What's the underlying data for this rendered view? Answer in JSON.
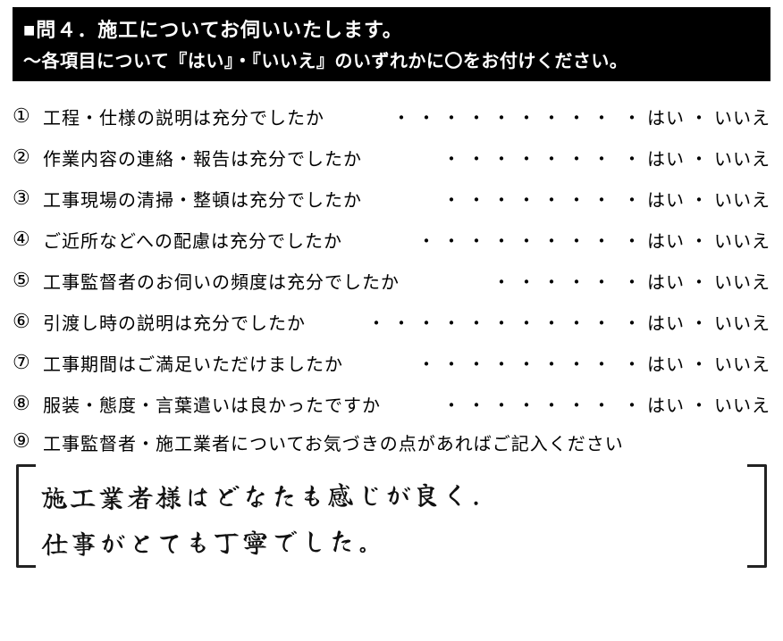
{
  "header": {
    "line1": "■問４．施工についてお伺いいたします。",
    "line2": "～各項目について『はい』・『いいえ』のいずれかに〇をお付けください。"
  },
  "answer_labels": {
    "hai": "はい",
    "iie": "いいえ",
    "sep": "・"
  },
  "questions": [
    {
      "num": "①",
      "text": "工程・仕様の説明は充分でしたか",
      "dots": "・・・・・・・・・",
      "selected": "hai"
    },
    {
      "num": "②",
      "text": "作業内容の連絡・報告は充分でしたか",
      "dots": "・・・・・・・",
      "selected": "hai"
    },
    {
      "num": "③",
      "text": "工事現場の清掃・整頓は充分でしたか",
      "dots": "・・・・・・・",
      "selected": "hai"
    },
    {
      "num": "④",
      "text": "ご近所などへの配慮は充分でしたか",
      "dots": "・・・・・・・・",
      "selected": "hai"
    },
    {
      "num": "⑤",
      "text": "工事監督者のお伺いの頻度は充分でしたか",
      "dots": "・・・・・",
      "selected": "hai"
    },
    {
      "num": "⑥",
      "text": "引渡し時の説明は充分でしたか",
      "dots": "・・・・・・・・・・",
      "selected": "hai"
    },
    {
      "num": "⑦",
      "text": "工事期間はご満足いただけましたか",
      "dots": "・・・・・・・・",
      "selected": "hai"
    },
    {
      "num": "⑧",
      "text": "服装・態度・言葉遣いは良かったですか",
      "dots": "・・・・・・・",
      "selected": "hai"
    }
  ],
  "freeform": {
    "num": "⑨",
    "prompt": "工事監督者・施工業者についてお気づきの点があればご記入ください",
    "answer_line1": "施工業者様はどなたも感じが良く．",
    "answer_line2": "仕事がとても丁寧でした。"
  },
  "colors": {
    "header_bg": "#000000",
    "header_fg": "#ffffff",
    "text": "#000000",
    "circle": "#111111"
  }
}
